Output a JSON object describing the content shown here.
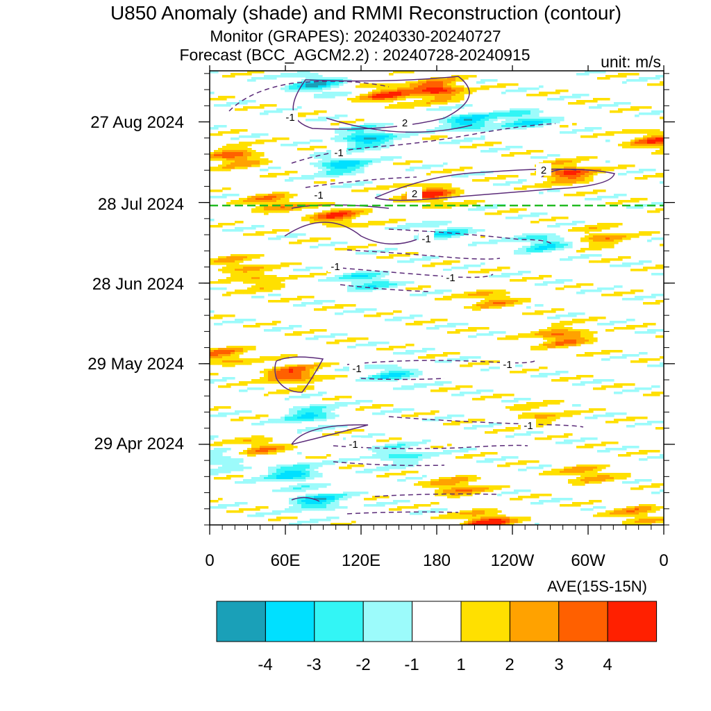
{
  "header": {
    "title": "U850 Anomaly (shade) and RMMI Reconstruction (contour)",
    "monitor": "Monitor (GRAPES): 20240330-20240727",
    "forecast": "Forecast (BCC_AGCM2.2) : 20240728-20240915",
    "unit": "unit: m/s"
  },
  "chart_data": {
    "type": "heatmap",
    "title": "U850 Anomaly (shade) and RMMI Reconstruction (contour)",
    "xlabel": "AVE(15S-15N)",
    "x_ticks": [
      "0",
      "60E",
      "120E",
      "180",
      "120W",
      "60W",
      "0"
    ],
    "y_ticks": [
      "27 Aug 2024",
      "28 Jul 2024",
      "28 Jun 2024",
      "29 May 2024",
      "29 Apr 2024"
    ],
    "xlim_deg_east": [
      0,
      360
    ],
    "time_range": [
      "20240330",
      "20240915"
    ],
    "forecast_start": "20240728",
    "forecast_line_color": "#22bb22",
    "contour_color": "#5a2a78",
    "contour_labels": [
      "-1",
      "-1",
      "-1",
      "2",
      "2",
      "2",
      "-1",
      "-1",
      "-1",
      "-1",
      "-1",
      "-1",
      "-1"
    ],
    "colorbar": {
      "labels": [
        "-4",
        "-3",
        "-2",
        "-1",
        "1",
        "2",
        "3",
        "4"
      ],
      "colors": [
        "#1aa0b8",
        "#00e0ff",
        "#33f5f5",
        "#9cfbfb",
        "#ffffff",
        "#ffe000",
        "#ffa200",
        "#ff6000",
        "#ff2000"
      ]
    },
    "shading_features": [
      {
        "lon": 140,
        "date": "2024-09-06",
        "value": 3.5
      },
      {
        "lon": 180,
        "date": "2024-09-08",
        "value": 4.5
      },
      {
        "lon": 175,
        "date": "2024-07-31",
        "value": 4.0
      },
      {
        "lon": 285,
        "date": "2024-08-08",
        "value": 4.0
      },
      {
        "lon": 20,
        "date": "2024-08-14",
        "value": 3.5
      },
      {
        "lon": 355,
        "date": "2024-08-20",
        "value": 3.5
      },
      {
        "lon": 85,
        "date": "2024-09-10",
        "value": -3.5
      },
      {
        "lon": 125,
        "date": "2024-08-21",
        "value": -4.0
      },
      {
        "lon": 105,
        "date": "2024-08-11",
        "value": -3.5
      },
      {
        "lon": 205,
        "date": "2024-08-27",
        "value": -3.5
      },
      {
        "lon": 250,
        "date": "2024-08-28",
        "value": -3.0
      },
      {
        "lon": 50,
        "date": "2024-07-28",
        "value": 3.0
      },
      {
        "lon": 100,
        "date": "2024-07-23",
        "value": 3.5
      },
      {
        "lon": 185,
        "date": "2024-07-17",
        "value": -2.5
      },
      {
        "lon": 265,
        "date": "2024-07-13",
        "value": -3.0
      },
      {
        "lon": 125,
        "date": "2024-06-29",
        "value": -3.0
      },
      {
        "lon": 280,
        "date": "2024-06-08",
        "value": 3.5
      },
      {
        "lon": 225,
        "date": "2024-06-22",
        "value": 2.5
      },
      {
        "lon": 65,
        "date": "2024-05-25",
        "value": 4.0
      },
      {
        "lon": 10,
        "date": "2024-06-01",
        "value": 3.0
      },
      {
        "lon": 145,
        "date": "2024-05-25",
        "value": -2.5
      },
      {
        "lon": 80,
        "date": "2024-05-10",
        "value": -3.0
      },
      {
        "lon": 65,
        "date": "2024-04-18",
        "value": -3.5
      },
      {
        "lon": 85,
        "date": "2024-04-08",
        "value": -3.5
      },
      {
        "lon": 195,
        "date": "2024-04-13",
        "value": 3.0
      },
      {
        "lon": 220,
        "date": "2024-03-31",
        "value": 4.5
      },
      {
        "lon": 40,
        "date": "2024-04-28",
        "value": 2.5
      },
      {
        "lon": 300,
        "date": "2024-04-18",
        "value": 2.5
      },
      {
        "lon": 150,
        "date": "2024-04-25",
        "value": -2.5
      },
      {
        "lon": 340,
        "date": "2024-04-03",
        "value": 2.5
      },
      {
        "lon": 40,
        "date": "2024-06-29",
        "value": 2.0
      },
      {
        "lon": 310,
        "date": "2024-07-15",
        "value": 2.5
      },
      {
        "lon": 20,
        "date": "2024-07-05",
        "value": 2.0
      },
      {
        "lon": 260,
        "date": "2024-05-10",
        "value": 2.0
      },
      {
        "lon": 10,
        "date": "2024-04-23",
        "value": -2.0
      }
    ]
  }
}
